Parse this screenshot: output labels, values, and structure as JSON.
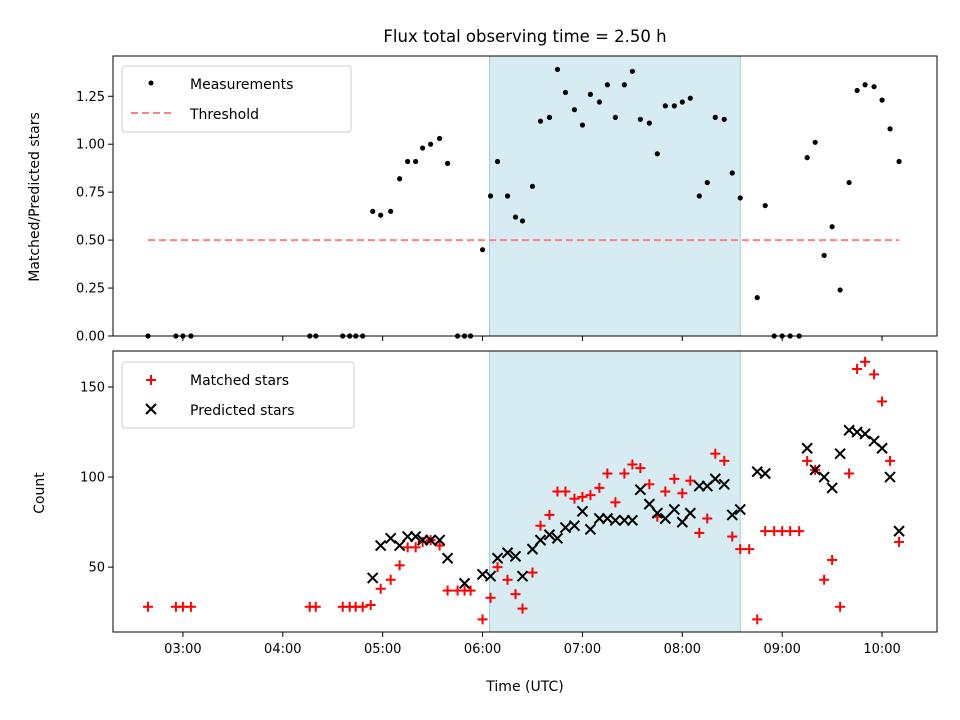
{
  "chart_data": [
    {
      "type": "scatter",
      "panel": "top",
      "title": "Flux total observing time = 2.50 h",
      "xlabel": "",
      "ylabel": "Matched/Predicted stars",
      "x_unit": "hours UTC",
      "xlim": [
        2.3,
        10.55
      ],
      "ylim": [
        0,
        1.46
      ],
      "yticks": [
        0.0,
        0.25,
        0.5,
        0.75,
        1.0,
        1.25
      ],
      "ytick_labels": [
        "0.00",
        "0.25",
        "0.50",
        "0.75",
        "1.00",
        "1.25"
      ],
      "xticks": [
        3,
        4,
        5,
        6,
        7,
        8,
        9,
        10
      ],
      "highlight_span": [
        6.07,
        8.58
      ],
      "colors": {
        "measurements": "#000000",
        "threshold": "#ff8080",
        "span": "#add8e6"
      },
      "legend": {
        "placement": "upper-left",
        "entries": [
          "Measurements",
          "Threshold"
        ]
      },
      "threshold": {
        "name": "Threshold",
        "value": 0.5,
        "x_range": [
          2.65,
          10.17
        ]
      },
      "series": [
        {
          "name": "Measurements",
          "x": [
            2.65,
            2.93,
            3.0,
            3.08,
            4.27,
            4.33,
            4.6,
            4.67,
            4.73,
            4.8,
            4.9,
            4.98,
            5.08,
            5.17,
            5.25,
            5.33,
            5.4,
            5.48,
            5.57,
            5.65,
            5.75,
            5.82,
            5.88,
            6.0,
            6.08,
            6.15,
            6.25,
            6.33,
            6.4,
            6.5,
            6.58,
            6.67,
            6.75,
            6.83,
            6.92,
            7.0,
            7.08,
            7.17,
            7.25,
            7.33,
            7.42,
            7.5,
            7.58,
            7.67,
            7.75,
            7.83,
            7.92,
            8.0,
            8.08,
            8.17,
            8.25,
            8.33,
            8.42,
            8.5,
            8.58,
            8.75,
            8.83,
            8.92,
            9.0,
            9.08,
            9.17,
            9.25,
            9.33,
            9.42,
            9.5,
            9.58,
            9.67,
            9.75,
            9.83,
            9.92,
            10.0,
            10.08,
            10.17
          ],
          "values": [
            0.0,
            0.0,
            0.0,
            0.0,
            0.0,
            0.0,
            0.0,
            0.0,
            0.0,
            0.0,
            0.65,
            0.63,
            0.65,
            0.82,
            0.91,
            0.91,
            0.98,
            1.0,
            1.03,
            0.9,
            0.0,
            0.0,
            0.0,
            0.45,
            0.73,
            0.91,
            0.73,
            0.62,
            0.6,
            0.78,
            1.12,
            1.14,
            1.39,
            1.27,
            1.18,
            1.1,
            1.26,
            1.22,
            1.31,
            1.14,
            1.31,
            1.38,
            1.13,
            1.11,
            0.95,
            1.2,
            1.2,
            1.22,
            1.24,
            0.73,
            0.8,
            1.14,
            1.13,
            0.85,
            0.72,
            0.2,
            0.68,
            0.0,
            0.0,
            0.0,
            0.0,
            0.93,
            1.01,
            0.42,
            0.57,
            0.24,
            0.8,
            1.28,
            1.31,
            1.3,
            1.23,
            1.08,
            0.91
          ]
        }
      ]
    },
    {
      "type": "scatter",
      "panel": "bottom",
      "title": "",
      "xlabel": "Time (UTC)",
      "ylabel": "Count",
      "x_unit": "hours UTC",
      "xlim": [
        2.3,
        10.55
      ],
      "ylim": [
        14,
        170
      ],
      "yticks": [
        50,
        100,
        150
      ],
      "ytick_labels": [
        "50",
        "100",
        "150"
      ],
      "xticks": [
        3,
        4,
        5,
        6,
        7,
        8,
        9,
        10
      ],
      "xtick_labels": [
        "03:00",
        "04:00",
        "05:00",
        "06:00",
        "07:00",
        "08:00",
        "09:00",
        "10:00"
      ],
      "highlight_span": [
        6.07,
        8.58
      ],
      "colors": {
        "matched": "#ff0000",
        "predicted": "#000000",
        "span": "#add8e6"
      },
      "legend": {
        "placement": "upper-left",
        "entries": [
          "Matched stars",
          "Predicted stars"
        ]
      },
      "series": [
        {
          "name": "Matched stars",
          "marker": "plus",
          "x": [
            2.65,
            2.93,
            3.0,
            3.08,
            4.27,
            4.33,
            4.6,
            4.67,
            4.73,
            4.8,
            4.88,
            4.98,
            5.08,
            5.17,
            5.25,
            5.33,
            5.4,
            5.48,
            5.57,
            5.65,
            5.75,
            5.82,
            5.88,
            6.0,
            6.08,
            6.15,
            6.25,
            6.33,
            6.4,
            6.5,
            6.58,
            6.67,
            6.75,
            6.83,
            6.92,
            7.0,
            7.08,
            7.17,
            7.25,
            7.33,
            7.42,
            7.5,
            7.58,
            7.67,
            7.75,
            7.83,
            7.92,
            8.0,
            8.08,
            8.17,
            8.25,
            8.33,
            8.42,
            8.5,
            8.58,
            8.67,
            8.75,
            8.83,
            8.92,
            9.0,
            9.08,
            9.17,
            9.25,
            9.33,
            9.42,
            9.5,
            9.58,
            9.67,
            9.75,
            9.83,
            9.92,
            10.0,
            10.08,
            10.17
          ],
          "values": [
            28,
            28,
            28,
            28,
            28,
            28,
            28,
            28,
            28,
            28,
            29,
            38,
            43,
            51,
            61,
            61,
            64,
            65,
            62,
            37,
            37,
            37,
            37,
            21,
            33,
            50,
            43,
            35,
            27,
            47,
            73,
            79,
            92,
            92,
            88,
            89,
            90,
            94,
            102,
            86,
            102,
            107,
            105,
            96,
            78,
            92,
            99,
            91,
            98,
            69,
            77,
            113,
            109,
            67,
            60,
            60,
            21,
            70,
            70,
            70,
            70,
            70,
            109,
            104,
            43,
            54,
            28,
            102,
            160,
            164,
            157,
            142,
            109,
            64
          ]
        },
        {
          "name": "Predicted stars",
          "marker": "x",
          "x": [
            4.9,
            4.98,
            5.08,
            5.17,
            5.25,
            5.33,
            5.4,
            5.48,
            5.57,
            5.65,
            5.82,
            6.0,
            6.08,
            6.15,
            6.25,
            6.33,
            6.4,
            6.5,
            6.58,
            6.67,
            6.75,
            6.83,
            6.92,
            7.0,
            7.08,
            7.17,
            7.25,
            7.33,
            7.42,
            7.5,
            7.58,
            7.67,
            7.75,
            7.83,
            7.92,
            8.0,
            8.08,
            8.17,
            8.25,
            8.33,
            8.42,
            8.5,
            8.58,
            8.75,
            8.83,
            9.25,
            9.33,
            9.42,
            9.5,
            9.58,
            9.67,
            9.75,
            9.83,
            9.92,
            10.0,
            10.08,
            10.17
          ],
          "values": [
            44,
            62,
            66,
            62,
            67,
            67,
            65,
            65,
            65,
            55,
            41,
            46,
            45,
            55,
            58,
            56,
            45,
            60,
            65,
            68,
            66,
            72,
            73,
            81,
            71,
            77,
            77,
            76,
            76,
            76,
            93,
            85,
            80,
            77,
            82,
            75,
            80,
            95,
            95,
            99,
            96,
            79,
            82,
            103,
            102,
            116,
            104,
            100,
            94,
            113,
            126,
            125,
            124,
            120,
            116,
            100,
            70
          ]
        }
      ]
    }
  ]
}
